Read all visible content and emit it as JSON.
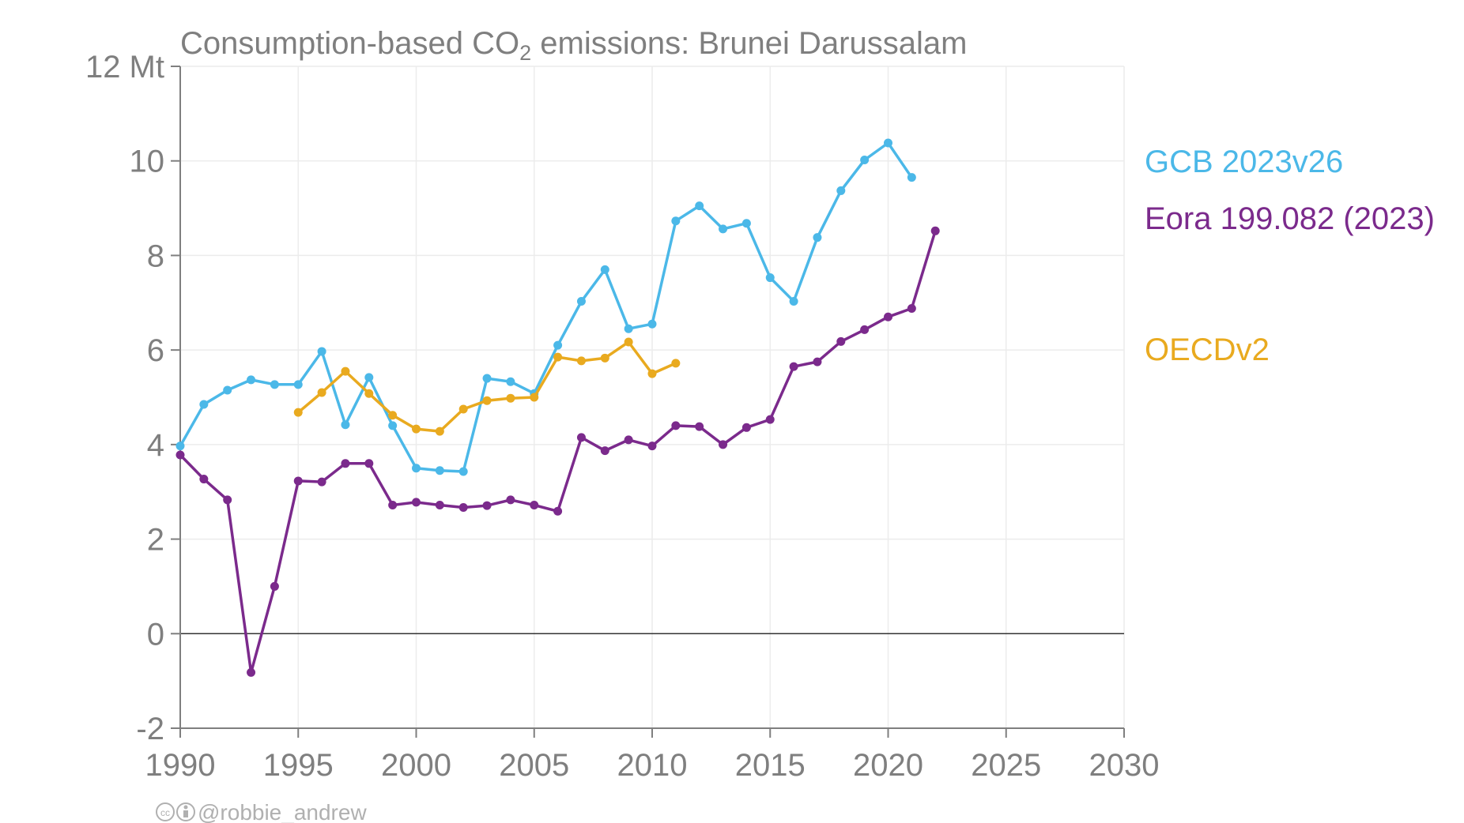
{
  "chart_data": {
    "type": "line",
    "title_main": "Consumption-based CO",
    "title_sub": "2",
    "title_rest": " emissions: Brunei Darussalam",
    "xlabel": "",
    "ylabel": "",
    "xlim": [
      1990,
      2030
    ],
    "ylim": [
      -2,
      12
    ],
    "x_ticks": [
      "1990",
      "1995",
      "2000",
      "2005",
      "2010",
      "2015",
      "2020",
      "2025",
      "2030"
    ],
    "y_ticks": [
      "12 Mt",
      "10",
      "8",
      "6",
      "4",
      "2",
      "0",
      "-2"
    ],
    "grid": true,
    "legend_placement": "right",
    "credit": "@robbie_andrew",
    "series": [
      {
        "name": "GCB 2023v26",
        "color": "#4bb8e8",
        "x": [
          1990,
          1991,
          1992,
          1993,
          1994,
          1995,
          1996,
          1997,
          1998,
          1999,
          2000,
          2001,
          2002,
          2003,
          2004,
          2005,
          2006,
          2007,
          2008,
          2009,
          2010,
          2011,
          2012,
          2013,
          2014,
          2015,
          2016,
          2017,
          2018,
          2019,
          2020,
          2021
        ],
        "values": [
          3.97,
          4.85,
          5.15,
          5.37,
          5.27,
          5.27,
          5.97,
          4.42,
          5.42,
          4.4,
          3.5,
          3.45,
          3.43,
          5.4,
          5.33,
          5.08,
          6.1,
          7.03,
          7.7,
          6.45,
          6.55,
          8.73,
          9.05,
          8.56,
          8.68,
          7.53,
          7.03,
          8.38,
          9.37,
          10.02,
          10.38,
          9.65
        ]
      },
      {
        "name": "Eora 199.082 (2023)",
        "color": "#7b2a8c",
        "x": [
          1990,
          1991,
          1992,
          1993,
          1994,
          1995,
          1996,
          1997,
          1998,
          1999,
          2000,
          2001,
          2002,
          2003,
          2004,
          2005,
          2006,
          2007,
          2008,
          2009,
          2010,
          2011,
          2012,
          2013,
          2014,
          2015,
          2016,
          2017,
          2018,
          2019,
          2020,
          2021,
          2022
        ],
        "values": [
          3.78,
          3.27,
          2.83,
          -0.82,
          1.0,
          3.23,
          3.21,
          3.6,
          3.6,
          2.72,
          2.78,
          2.72,
          2.67,
          2.71,
          2.83,
          2.72,
          2.59,
          4.15,
          3.87,
          4.1,
          3.97,
          4.4,
          4.38,
          4.0,
          4.36,
          4.53,
          5.65,
          5.75,
          6.18,
          6.43,
          6.7,
          6.88,
          8.52
        ]
      },
      {
        "name": "OECDv2",
        "color": "#e9aa1f",
        "x": [
          1995,
          1996,
          1997,
          1998,
          1999,
          2000,
          2001,
          2002,
          2003,
          2004,
          2005,
          2006,
          2007,
          2008,
          2009,
          2010,
          2011
        ],
        "values": [
          4.68,
          5.1,
          5.55,
          5.08,
          4.62,
          4.33,
          4.28,
          4.75,
          4.93,
          4.98,
          5.0,
          5.85,
          5.77,
          5.83,
          6.17,
          5.5,
          5.72
        ]
      }
    ]
  }
}
